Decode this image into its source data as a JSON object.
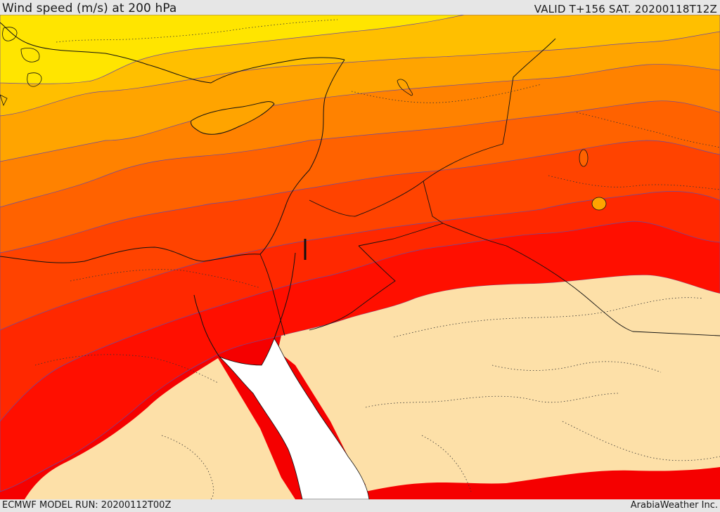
{
  "header": {
    "title": "Wind speed (m/s) at 200 hPa",
    "valid": "VALID T+156 SAT. 20200118T12Z"
  },
  "footer": {
    "model_run": "ECMWF MODEL RUN: 20200112T00Z",
    "credit": "ArabiaWeather Inc."
  },
  "colors": {
    "band_yellow": "#ffe500",
    "band_1": "#ffbf00",
    "band_2": "#ffa400",
    "band_3": "#ff8200",
    "band_4": "#ff6200",
    "band_5": "#ff4300",
    "band_6": "#ff2800",
    "band_7": "#ff0f00",
    "band_8": "#f50000",
    "calm_land": "#fde0a8",
    "sea": "#ffffff"
  }
}
